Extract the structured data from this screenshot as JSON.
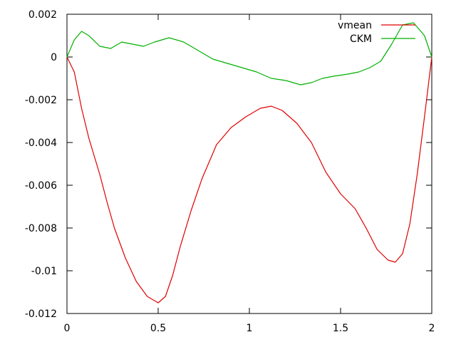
{
  "chart_data": {
    "type": "line",
    "title": "",
    "xlabel": "",
    "ylabel": "",
    "xlim": [
      0,
      2
    ],
    "ylim": [
      -0.012,
      0.002
    ],
    "grid": false,
    "legend_position": "top-right",
    "x_ticks": [
      0,
      0.5,
      1,
      1.5,
      2
    ],
    "x_tick_labels": [
      "0",
      "0.5",
      "1",
      "1.5",
      "2"
    ],
    "y_ticks": [
      0.002,
      0,
      -0.002,
      -0.004,
      -0.006,
      -0.008,
      -0.01,
      -0.012
    ],
    "y_tick_labels": [
      "0.002",
      "0",
      "-0.002",
      "-0.004",
      "-0.006",
      "-0.008",
      "-0.01",
      "-0.012"
    ],
    "series": [
      {
        "name": "vmean",
        "color": "#e00000",
        "points": [
          [
            0.0,
            0.0
          ],
          [
            0.04,
            -0.0007
          ],
          [
            0.08,
            -0.0024
          ],
          [
            0.12,
            -0.0038
          ],
          [
            0.18,
            -0.0055
          ],
          [
            0.22,
            -0.0068
          ],
          [
            0.26,
            -0.008
          ],
          [
            0.32,
            -0.0094
          ],
          [
            0.38,
            -0.0105
          ],
          [
            0.44,
            -0.0112
          ],
          [
            0.5,
            -0.0115
          ],
          [
            0.54,
            -0.0112
          ],
          [
            0.58,
            -0.0102
          ],
          [
            0.62,
            -0.0089
          ],
          [
            0.68,
            -0.0072
          ],
          [
            0.74,
            -0.0057
          ],
          [
            0.82,
            -0.0041
          ],
          [
            0.9,
            -0.0033
          ],
          [
            0.98,
            -0.0028
          ],
          [
            1.06,
            -0.0024
          ],
          [
            1.12,
            -0.0023
          ],
          [
            1.18,
            -0.0025
          ],
          [
            1.26,
            -0.0031
          ],
          [
            1.34,
            -0.004
          ],
          [
            1.42,
            -0.0054
          ],
          [
            1.5,
            -0.0064
          ],
          [
            1.58,
            -0.0071
          ],
          [
            1.64,
            -0.008
          ],
          [
            1.7,
            -0.009
          ],
          [
            1.76,
            -0.0095
          ],
          [
            1.8,
            -0.0096
          ],
          [
            1.84,
            -0.0092
          ],
          [
            1.88,
            -0.0078
          ],
          [
            1.92,
            -0.0055
          ],
          [
            1.96,
            -0.0028
          ],
          [
            2.0,
            0.0
          ]
        ]
      },
      {
        "name": "CKM",
        "color": "#00b000",
        "points": [
          [
            0.0,
            0.0
          ],
          [
            0.04,
            0.0008
          ],
          [
            0.08,
            0.0012
          ],
          [
            0.12,
            0.001
          ],
          [
            0.18,
            0.0005
          ],
          [
            0.24,
            0.0004
          ],
          [
            0.3,
            0.0007
          ],
          [
            0.36,
            0.0006
          ],
          [
            0.42,
            0.0005
          ],
          [
            0.48,
            0.0007
          ],
          [
            0.56,
            0.0009
          ],
          [
            0.64,
            0.0007
          ],
          [
            0.72,
            0.0003
          ],
          [
            0.8,
            -0.0001
          ],
          [
            0.88,
            -0.0003
          ],
          [
            0.96,
            -0.0005
          ],
          [
            1.04,
            -0.0007
          ],
          [
            1.12,
            -0.001
          ],
          [
            1.2,
            -0.0011
          ],
          [
            1.28,
            -0.0013
          ],
          [
            1.34,
            -0.0012
          ],
          [
            1.4,
            -0.001
          ],
          [
            1.46,
            -0.0009
          ],
          [
            1.54,
            -0.0008
          ],
          [
            1.6,
            -0.0007
          ],
          [
            1.66,
            -0.0005
          ],
          [
            1.72,
            -0.0002
          ],
          [
            1.78,
            0.0006
          ],
          [
            1.84,
            0.0015
          ],
          [
            1.9,
            0.0016
          ],
          [
            1.96,
            0.001
          ],
          [
            2.0,
            0.0
          ]
        ]
      }
    ]
  }
}
